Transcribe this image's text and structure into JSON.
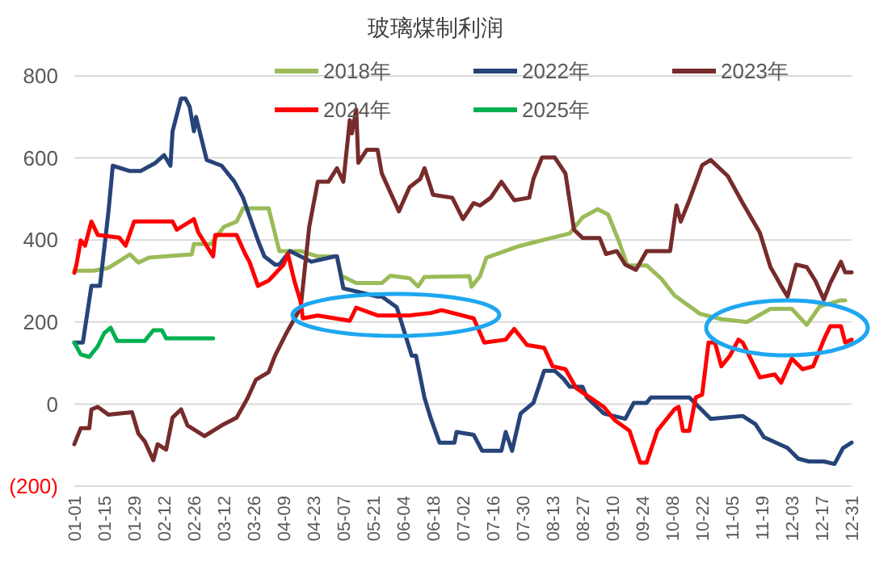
{
  "chart_data": {
    "type": "line",
    "title": "玻璃煤制利润",
    "xlim": [
      "--01-01",
      "--12-31"
    ],
    "xticks": [
      {
        "value": "--01-01",
        "label": "01-01"
      },
      {
        "value": "--01-15",
        "label": "01-15"
      },
      {
        "value": "--01-29",
        "label": "01-29"
      },
      {
        "value": "--02-12",
        "label": "02-12"
      },
      {
        "value": "--02-26",
        "label": "02-26"
      },
      {
        "value": "--03-12",
        "label": "03-12"
      },
      {
        "value": "--03-26",
        "label": "03-26"
      },
      {
        "value": "--04-09",
        "label": "04-09"
      },
      {
        "value": "--04-23",
        "label": "04-23"
      },
      {
        "value": "--05-07",
        "label": "05-07"
      },
      {
        "value": "--05-21",
        "label": "05-21"
      },
      {
        "value": "--06-04",
        "label": "06-04"
      },
      {
        "value": "--06-18",
        "label": "06-18"
      },
      {
        "value": "--07-02",
        "label": "07-02"
      },
      {
        "value": "--07-16",
        "label": "07-16"
      },
      {
        "value": "--07-30",
        "label": "07-30"
      },
      {
        "value": "--08-13",
        "label": "08-13"
      },
      {
        "value": "--08-27",
        "label": "08-27"
      },
      {
        "value": "--09-10",
        "label": "09-10"
      },
      {
        "value": "--09-24",
        "label": "09-24"
      },
      {
        "value": "--10-08",
        "label": "10-08"
      },
      {
        "value": "--10-22",
        "label": "10-22"
      },
      {
        "value": "--11-05",
        "label": "11-05"
      },
      {
        "value": "--11-19",
        "label": "11-19"
      },
      {
        "value": "--12-03",
        "label": "12-03"
      },
      {
        "value": "--12-17",
        "label": "12-17"
      },
      {
        "value": "--12-31",
        "label": "12-31"
      }
    ],
    "ylim": [
      -200,
      800
    ],
    "yticks": [
      {
        "value": -200,
        "label": "(200)"
      },
      0,
      200,
      400,
      600,
      800
    ],
    "grid": "y",
    "legend": "top",
    "line_style": "solid",
    "series": [
      {
        "name": "2018年",
        "color": "#9bbb59",
        "x": [
          "--01-01",
          "--01-10",
          "--01-17",
          "--01-21",
          "--01-27",
          "--01-31",
          "--02-05",
          "--02-25",
          "--02-26",
          "--03-06",
          "--03-12",
          "--03-18",
          "--03-21",
          "--04-02",
          "--04-07",
          "--04-17",
          "--04-25",
          "--05-04",
          "--05-06",
          "--05-13",
          "--05-25",
          "--05-29",
          "--06-07",
          "--06-11",
          "--06-14",
          "--07-05",
          "--07-06",
          "--07-10",
          "--07-13",
          "--07-27",
          "--08-01",
          "--08-11",
          "--08-21",
          "--08-27",
          "--09-03",
          "--09-08",
          "--09-13",
          "--09-17",
          "--09-26",
          "--10-03",
          "--10-09",
          "--10-21",
          "--10-31",
          "--11-12",
          "--11-23",
          "--12-03",
          "--12-10",
          "--12-16",
          "--12-26",
          "--12-28"
        ],
        "values": [
          325,
          325,
          332,
          345,
          365,
          345,
          357,
          365,
          390,
          390,
          432,
          445,
          477,
          477,
          373,
          373,
          360,
          360,
          313,
          295,
          295,
          313,
          307,
          287,
          310,
          312,
          286,
          312,
          357,
          383,
          390,
          403,
          416,
          455,
          475,
          462,
          397,
          338,
          338,
          305,
          265,
          220,
          207,
          200,
          232,
          232,
          193,
          238,
          253,
          253
        ]
      },
      {
        "name": "2022年",
        "color": "#264478",
        "x": [
          "--01-01",
          "--01-05",
          "--01-09",
          "--01-13",
          "--01-17",
          "--01-19",
          "--01-27",
          "--02-01",
          "--02-08",
          "--02-12",
          "--02-15",
          "--02-16",
          "--02-20",
          "--02-22",
          "--02-24",
          "--02-26",
          "--02-27",
          "--03-04",
          "--03-11",
          "--03-17",
          "--03-21",
          "--03-28",
          "--03-31",
          "--04-05",
          "--04-07",
          "--04-12",
          "--04-22",
          "--05-03",
          "--05-04",
          "--05-07",
          "--05-23",
          "--05-25",
          "--06-01",
          "--06-08",
          "--06-10",
          "--06-14",
          "--06-17",
          "--06-21",
          "--06-28",
          "--06-29",
          "--07-07",
          "--07-11",
          "--07-20",
          "--07-22",
          "--07-25",
          "--07-29",
          "--08-04",
          "--08-09",
          "--08-14",
          "--08-18",
          "--08-21",
          "--08-27",
          "--08-29",
          "--09-06",
          "--09-16",
          "--09-20",
          "--09-26",
          "--09-28",
          "--10-09",
          "--10-16",
          "--10-26",
          "--11-10",
          "--11-16",
          "--11-20",
          "--12-01",
          "--12-06",
          "--12-11",
          "--12-18",
          "--12-23",
          "--12-27",
          "--12-31"
        ],
        "values": [
          150,
          150,
          288,
          288,
          470,
          581,
          568,
          568,
          588,
          607,
          581,
          665,
          745,
          745,
          725,
          665,
          700,
          595,
          581,
          542,
          503,
          399,
          360,
          340,
          340,
          373,
          347,
          360,
          360,
          282,
          262,
          262,
          236,
          118,
          118,
          15,
          -36,
          -94,
          -94,
          -68,
          -75,
          -114,
          -114,
          -68,
          -114,
          -23,
          3,
          81,
          81,
          62,
          42,
          42,
          16,
          -23,
          -36,
          3,
          3,
          16,
          16,
          16,
          -36,
          -29,
          -49,
          -81,
          -107,
          -133,
          -140,
          -140,
          -146,
          -107,
          -94
        ]
      },
      {
        "name": "2023年",
        "color": "#772b2b",
        "x": [
          "--01-01",
          "--01-04",
          "--01-08",
          "--01-09",
          "--01-12",
          "--01-17",
          "--01-28",
          "--01-31",
          "--02-03",
          "--02-07",
          "--02-09",
          "--02-13",
          "--02-16",
          "--02-20",
          "--02-23",
          "--03-03",
          "--03-11",
          "--03-18",
          "--03-23",
          "--03-27",
          "--04-02",
          "--04-05",
          "--04-10",
          "--04-17",
          "--04-21",
          "--04-25",
          "--04-30",
          "--05-04",
          "--05-07",
          "--05-10",
          "--05-11",
          "--05-13",
          "--05-14",
          "--05-18",
          "--05-23",
          "--05-25",
          "--06-02",
          "--06-07",
          "--06-12",
          "--06-14",
          "--06-18",
          "--06-27",
          "--07-02",
          "--07-07",
          "--07-10",
          "--07-15",
          "--07-20",
          "--07-26",
          "--08-02",
          "--08-04",
          "--08-08",
          "--08-14",
          "--08-19",
          "--08-23",
          "--08-27",
          "--09-04",
          "--09-07",
          "--09-12",
          "--09-16",
          "--09-21",
          "--09-26",
          "--10-07",
          "--10-10",
          "--10-12",
          "--10-16",
          "--10-22",
          "--10-26",
          "--11-03",
          "--11-10",
          "--11-18",
          "--11-23",
          "--11-28",
          "--12-01",
          "--12-05",
          "--12-10",
          "--12-14",
          "--12-18",
          "--12-21",
          "--12-26",
          "--12-28",
          "--12-31"
        ],
        "values": [
          -98,
          -59,
          -59,
          -13,
          -7,
          -26,
          -20,
          -72,
          -91,
          -137,
          -98,
          -111,
          -33,
          -13,
          -52,
          -78,
          -52,
          -33,
          13,
          59,
          78,
          118,
          170,
          235,
          432,
          542,
          542,
          575,
          542,
          692,
          660,
          718,
          588,
          620,
          620,
          562,
          470,
          529,
          549,
          575,
          510,
          503,
          451,
          490,
          484,
          503,
          542,
          497,
          503,
          549,
          601,
          601,
          562,
          425,
          405,
          405,
          366,
          373,
          340,
          327,
          373,
          373,
          484,
          445,
          497,
          582,
          595,
          556,
          490,
          418,
          334,
          288,
          262,
          340,
          334,
          301,
          255,
          295,
          347,
          321,
          321
        ]
      },
      {
        "name": "2024年",
        "color": "#ff0000",
        "x": [
          "--01-01",
          "--01-02",
          "--01-04",
          "--01-06",
          "--01-09",
          "--01-12",
          "--01-22",
          "--01-25",
          "--01-29",
          "--02-16",
          "--02-18",
          "--02-26",
          "--02-28",
          "--03-07",
          "--03-08",
          "--03-18",
          "--03-22",
          "--03-24",
          "--03-28",
          "--04-02",
          "--04-09",
          "--04-11",
          "--04-14",
          "--04-17",
          "--04-18",
          "--04-25",
          "--05-10",
          "--05-13",
          "--05-23",
          "--06-07",
          "--06-17",
          "--06-22",
          "--07-07",
          "--07-12",
          "--07-22",
          "--07-26",
          "--08-01",
          "--08-09",
          "--08-13",
          "--08-19",
          "--08-24",
          "--09-06",
          "--09-11",
          "--09-18",
          "--09-23",
          "--09-26",
          "--10-01",
          "--10-09",
          "--10-11",
          "--10-13",
          "--10-16",
          "--10-19",
          "--10-22",
          "--10-25",
          "--10-28",
          "--10-31",
          "--11-04",
          "--11-08",
          "--11-10",
          "--11-18",
          "--11-25",
          "--11-28",
          "--12-03",
          "--12-08",
          "--12-13",
          "--12-18",
          "--12-21",
          "--12-26",
          "--12-28",
          "--12-31"
        ],
        "values": [
          320,
          340,
          399,
          386,
          445,
          412,
          406,
          386,
          445,
          445,
          425,
          451,
          419,
          360,
          412,
          412,
          366,
          347,
          288,
          301,
          340,
          366,
          301,
          249,
          209,
          216,
          203,
          235,
          216,
          216,
          222,
          229,
          209,
          150,
          157,
          183,
          144,
          137,
          92,
          85,
          39,
          -7,
          -39,
          -65,
          -143,
          -143,
          -65,
          -13,
          -7,
          -65,
          -65,
          16,
          23,
          150,
          150,
          92,
          118,
          157,
          150,
          65,
          72,
          52,
          111,
          85,
          92,
          157,
          190,
          190,
          150,
          157
        ]
      },
      {
        "name": "2025年",
        "color": "#00b050",
        "x": [
          "--01-01",
          "--01-04",
          "--01-08",
          "--01-12",
          "--01-15",
          "--01-18",
          "--01-21",
          "--02-03",
          "--02-07",
          "--02-11",
          "--02-13",
          "--03-07"
        ],
        "values": [
          150,
          121,
          115,
          141,
          173,
          186,
          154,
          154,
          180,
          180,
          160,
          160
        ]
      }
    ]
  }
}
